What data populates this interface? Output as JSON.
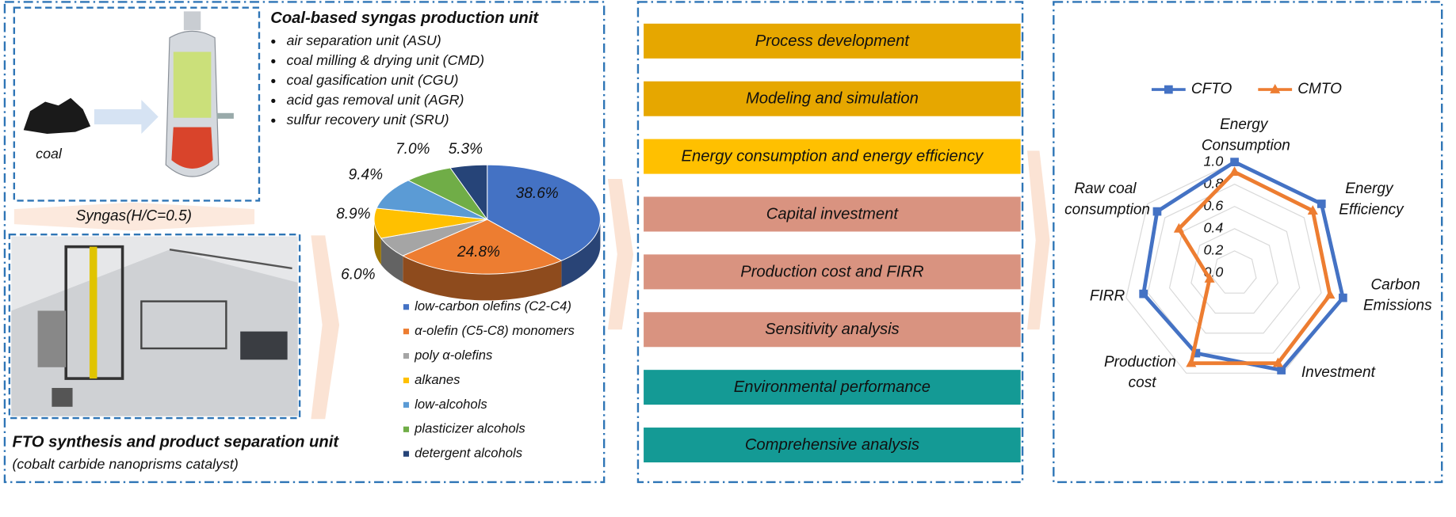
{
  "syngas_unit": {
    "title": "Coal-based syngas production unit",
    "items": [
      "air separation unit (ASU)",
      "coal milling & drying unit (CMD)",
      "coal gasification unit (CGU)",
      "acid gas removal unit (AGR)",
      "sulfur recovery unit (SRU)"
    ]
  },
  "coal_label": "coal",
  "syngas_label": "Syngas(H/C=0.5)",
  "fto_unit": {
    "title": "FTO synthesis and product separation unit",
    "subtitle": "(cobalt carbide nanoprisms catalyst)"
  },
  "steps": [
    {
      "label": "Process development",
      "color": "#e6a700"
    },
    {
      "label": "Modeling and simulation",
      "color": "#e6a700"
    },
    {
      "label": "Energy consumption and energy efficiency",
      "color": "#ffc000"
    },
    {
      "label": "Capital investment",
      "color": "#d99380"
    },
    {
      "label": "Production cost and FIRR",
      "color": "#d99380"
    },
    {
      "label": "Sensitivity analysis",
      "color": "#d99380"
    },
    {
      "label": "Environmental performance",
      "color": "#149a95"
    },
    {
      "label": "Comprehensive analysis",
      "color": "#149a95"
    }
  ],
  "chart_data": [
    {
      "type": "pie",
      "categories": [
        "low-carbon olefins (C2-C4)",
        "α-olefin (C5-C8) monomers",
        "poly α-olefins",
        "alkanes",
        "low-alcohols",
        "plasticizer alcohols",
        "detergent alcohols"
      ],
      "values": [
        38.6,
        24.8,
        6.0,
        8.9,
        9.4,
        7.0,
        5.3
      ],
      "value_labels": [
        "38.6%",
        "24.8%",
        "6.0%",
        "8.9%",
        "9.4%",
        "7.0%",
        "5.3%"
      ],
      "colors": [
        "#4472c4",
        "#ed7d31",
        "#a5a5a5",
        "#ffc000",
        "#5b9bd5",
        "#70ad47",
        "#264478"
      ]
    },
    {
      "type": "radar",
      "categories": [
        "Energy Consumption",
        "Energy Efficiency",
        "Carbon Emissions",
        "Investment",
        "Production cost",
        "FIRR",
        "Raw coal consumption"
      ],
      "series": [
        {
          "name": "CFTO",
          "color": "#4472c4",
          "values": [
            1.0,
            1.0,
            1.0,
            0.97,
            0.8,
            0.84,
            0.89
          ]
        },
        {
          "name": "CMTO",
          "color": "#ed7d31",
          "values": [
            0.91,
            0.9,
            0.88,
            0.9,
            0.9,
            0.23,
            0.64
          ]
        }
      ],
      "ylim": [
        0,
        1
      ],
      "yticks": [
        {
          "value": 0,
          "label": "0.0"
        },
        0.2,
        0.4,
        0.6,
        0.8,
        {
          "value": 1,
          "label": "1.0"
        }
      ],
      "grid": true
    }
  ]
}
